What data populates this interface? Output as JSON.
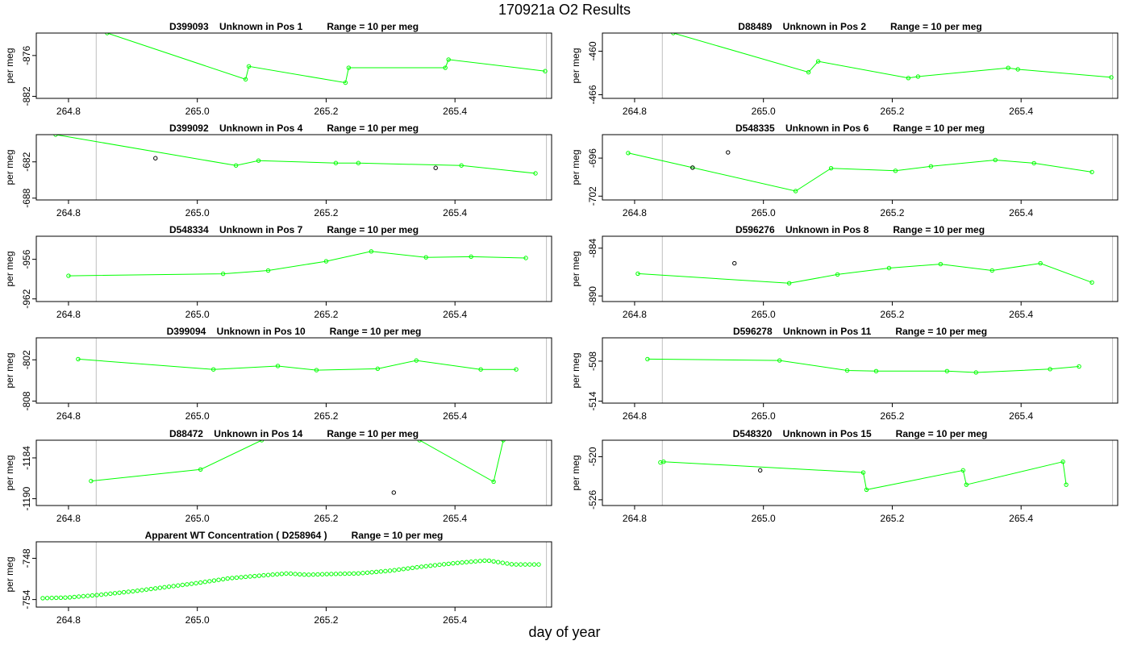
{
  "title": "170921a  O2 Results",
  "xlabel": "day of year",
  "ylabel": "per meg",
  "colors": {
    "series": "#00ff00",
    "outlier": "#000000",
    "vline": "#bebebe",
    "frame": "#000000"
  },
  "chart_data": [
    {
      "type": "line",
      "title": "D399093    Unknown in Pos 1         Range = 10 per meg",
      "xlim": [
        264.75,
        265.55
      ],
      "ylim": [
        -882.3,
        -872.7
      ],
      "xticks": [
        264.8,
        265.0,
        265.2,
        265.4
      ],
      "yticks": [
        -876,
        -882
      ],
      "vlines": [
        264.843,
        265.542
      ],
      "points": [
        [
          264.86,
          -872.7
        ],
        [
          265.075,
          -879.5
        ],
        [
          265.08,
          -877.6
        ],
        [
          265.23,
          -880
        ],
        [
          265.235,
          -877.8
        ],
        [
          265.385,
          -877.8
        ],
        [
          265.39,
          -876.6
        ],
        [
          265.54,
          -878.3
        ]
      ],
      "outliers": []
    },
    {
      "type": "line",
      "title": "D88489    Unknown in Pos 2         Range = 10 per meg",
      "xlim": [
        264.75,
        265.55
      ],
      "ylim": [
        -466.5,
        -457.5
      ],
      "xticks": [
        264.8,
        265.0,
        265.2,
        265.4
      ],
      "yticks": [
        -460,
        -466
      ],
      "vlines": [
        264.843,
        265.542
      ],
      "points": [
        [
          264.86,
          -457.5
        ],
        [
          265.07,
          -462.9
        ],
        [
          265.085,
          -461.4
        ],
        [
          265.225,
          -463.7
        ],
        [
          265.24,
          -463.5
        ],
        [
          265.38,
          -462.3
        ],
        [
          265.395,
          -462.5
        ],
        [
          265.54,
          -463.6
        ]
      ],
      "outliers": []
    },
    {
      "type": "line",
      "title": "D399092    Unknown in Pos 4         Range = 10 per meg",
      "xlim": [
        264.75,
        265.55
      ],
      "ylim": [
        -688.3,
        -677.5
      ],
      "xticks": [
        264.8,
        265.0,
        265.2,
        265.4
      ],
      "yticks": [
        -682,
        -688
      ],
      "vlines": [
        264.843,
        265.542
      ],
      "points": [
        [
          264.78,
          -677.5
        ],
        [
          265.06,
          -682.6
        ],
        [
          265.095,
          -681.8
        ],
        [
          265.215,
          -682.2
        ],
        [
          265.25,
          -682.2
        ],
        [
          265.41,
          -682.6
        ],
        [
          265.525,
          -683.9
        ]
      ],
      "outliers": [
        [
          264.935,
          -681.4
        ],
        [
          265.37,
          -683
        ]
      ]
    },
    {
      "type": "line",
      "title": "D548335    Unknown in Pos 6         Range = 10 per meg",
      "xlim": [
        264.75,
        265.55
      ],
      "ylim": [
        -702.6,
        -692.3
      ],
      "xticks": [
        264.8,
        265.0,
        265.2,
        265.4
      ],
      "yticks": [
        -696,
        -702
      ],
      "vlines": [
        264.843,
        265.542
      ],
      "points": [
        [
          264.79,
          -695.2
        ],
        [
          264.89,
          -697.5
        ],
        [
          265.05,
          -701.2
        ],
        [
          265.105,
          -697.6
        ],
        [
          265.205,
          -698
        ],
        [
          265.26,
          -697.3
        ],
        [
          265.36,
          -696.3
        ],
        [
          265.42,
          -696.8
        ],
        [
          265.51,
          -698.2
        ]
      ],
      "outliers": [
        [
          264.89,
          -697.5
        ],
        [
          264.945,
          -695.1
        ]
      ]
    },
    {
      "type": "line",
      "title": "D548334    Unknown in Pos 7         Range = 10 per meg",
      "xlim": [
        264.75,
        265.55
      ],
      "ylim": [
        -962.4,
        -952.5
      ],
      "xticks": [
        264.8,
        265.0,
        265.2,
        265.4
      ],
      "yticks": [
        -956,
        -962
      ],
      "vlines": [
        264.843,
        265.542
      ],
      "points": [
        [
          264.8,
          -958.5
        ],
        [
          265.04,
          -958.2
        ],
        [
          265.11,
          -957.7
        ],
        [
          265.2,
          -956.3
        ],
        [
          265.27,
          -954.8
        ],
        [
          265.355,
          -955.7
        ],
        [
          265.425,
          -955.6
        ],
        [
          265.51,
          -955.8
        ]
      ],
      "outliers": []
    },
    {
      "type": "line",
      "title": "D596276    Unknown in Pos 8         Range = 10 per meg",
      "xlim": [
        264.75,
        265.55
      ],
      "ylim": [
        -890.7,
        -882.5
      ],
      "xticks": [
        264.8,
        265.0,
        265.2,
        265.4
      ],
      "yticks": [
        -884,
        -890
      ],
      "vlines": [
        264.843,
        265.542
      ],
      "points": [
        [
          264.805,
          -887.2
        ],
        [
          265.04,
          -888.4
        ],
        [
          265.115,
          -887.3
        ],
        [
          265.195,
          -886.5
        ],
        [
          265.275,
          -886
        ],
        [
          265.355,
          -886.8
        ],
        [
          265.43,
          -885.9
        ],
        [
          265.51,
          -888.3
        ]
      ],
      "outliers": [
        [
          264.955,
          -885.9
        ]
      ]
    },
    {
      "type": "line",
      "title": "D399094    Unknown in Pos 10         Range = 10 per meg",
      "xlim": [
        264.75,
        265.55
      ],
      "ylim": [
        -808.3,
        -798.8
      ],
      "xticks": [
        264.8,
        265.0,
        265.2,
        265.4
      ],
      "yticks": [
        -802,
        -808
      ],
      "vlines": [
        264.843,
        265.542
      ],
      "points": [
        [
          264.815,
          -801.9
        ],
        [
          265.025,
          -803.4
        ],
        [
          265.125,
          -802.9
        ],
        [
          265.185,
          -803.5
        ],
        [
          265.28,
          -803.3
        ],
        [
          265.34,
          -802.1
        ],
        [
          265.44,
          -803.4
        ],
        [
          265.495,
          -803.4
        ]
      ],
      "outliers": []
    },
    {
      "type": "line",
      "title": "D596278    Unknown in Pos 11         Range = 10 per meg",
      "xlim": [
        264.75,
        265.55
      ],
      "ylim": [
        -514.3,
        -504.5
      ],
      "xticks": [
        264.8,
        265.0,
        265.2,
        265.4
      ],
      "yticks": [
        -508,
        -514
      ],
      "vlines": [
        264.843,
        265.542
      ],
      "points": [
        [
          264.82,
          -507.7
        ],
        [
          265.025,
          -507.9
        ],
        [
          265.13,
          -509.4
        ],
        [
          265.175,
          -509.5
        ],
        [
          265.285,
          -509.5
        ],
        [
          265.33,
          -509.7
        ],
        [
          265.445,
          -509.2
        ],
        [
          265.49,
          -508.8
        ]
      ],
      "outliers": []
    },
    {
      "type": "line",
      "title": "D88472    Unknown in Pos 14         Range = 10 per meg",
      "xlim": [
        264.75,
        265.55
      ],
      "ylim": [
        -1191,
        -1181.4
      ],
      "xticks": [
        264.8,
        265.0,
        265.2,
        265.4
      ],
      "yticks": [
        -1184,
        -1190
      ],
      "vlines": [
        264.843,
        265.542
      ],
      "points": [
        [
          264.835,
          -1187.4
        ],
        [
          265.005,
          -1185.7
        ],
        [
          265.1,
          -1181.4
        ],
        [
          265.345,
          -1181.4
        ],
        [
          265.46,
          -1187.5
        ],
        [
          265.475,
          -1181.4
        ]
      ],
      "outliers": [
        [
          265.305,
          -1189.1
        ]
      ]
    },
    {
      "type": "line",
      "title": "D548320    Unknown in Pos 15         Range = 10 per meg",
      "xlim": [
        264.75,
        265.55
      ],
      "ylim": [
        -526.8,
        -517.7
      ],
      "xticks": [
        264.8,
        265.0,
        265.2,
        265.4
      ],
      "yticks": [
        -520,
        -526
      ],
      "vlines": [
        264.843,
        265.542
      ],
      "points": [
        [
          264.84,
          -520.8
        ],
        [
          264.845,
          -520.7
        ],
        [
          265.155,
          -522.2
        ],
        [
          265.16,
          -524.6
        ],
        [
          265.31,
          -521.9
        ],
        [
          265.315,
          -523.9
        ],
        [
          265.465,
          -520.7
        ],
        [
          265.47,
          -523.9
        ]
      ],
      "outliers": [
        [
          264.995,
          -521.9
        ]
      ]
    },
    {
      "type": "scatter",
      "title": "Apparent WT Concentration ( D258964 )         Range = 10 per meg",
      "xlim": [
        264.75,
        265.55
      ],
      "ylim": [
        -755.1,
        -745.6
      ],
      "xticks": [
        264.8,
        265.0,
        265.2,
        265.4
      ],
      "yticks": [
        -748,
        -754
      ],
      "vlines": [
        264.843,
        265.542
      ],
      "curve": [
        [
          264.76,
          -753.8
        ],
        [
          264.8,
          -753.7
        ],
        [
          264.85,
          -753.3
        ],
        [
          264.9,
          -752.8
        ],
        [
          264.95,
          -752.2
        ],
        [
          265.0,
          -751.6
        ],
        [
          265.05,
          -750.9
        ],
        [
          265.1,
          -750.5
        ],
        [
          265.14,
          -750.2
        ],
        [
          265.17,
          -750.4
        ],
        [
          265.2,
          -750.3
        ],
        [
          265.25,
          -750.2
        ],
        [
          265.3,
          -749.8
        ],
        [
          265.35,
          -749.2
        ],
        [
          265.4,
          -748.7
        ],
        [
          265.45,
          -748.3
        ],
        [
          265.47,
          -748.6
        ],
        [
          265.49,
          -748.9
        ],
        [
          265.53,
          -748.9
        ]
      ],
      "step": 0.007
    }
  ]
}
